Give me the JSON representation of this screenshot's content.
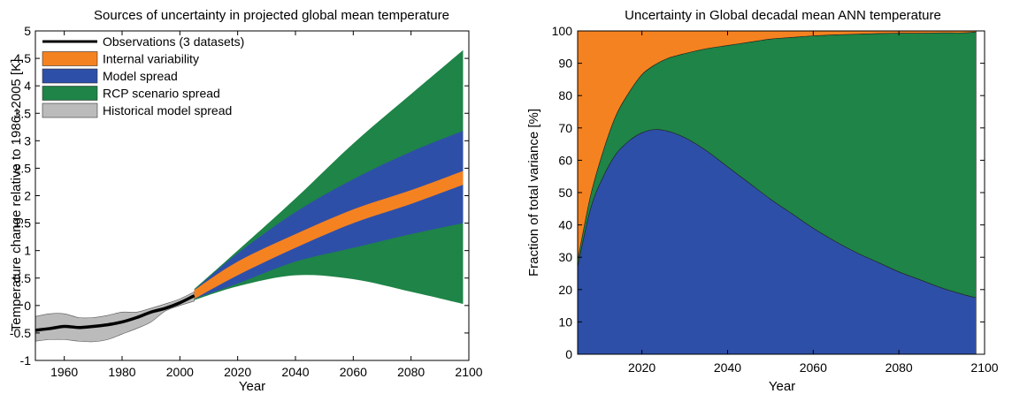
{
  "chart_data": [
    {
      "type": "area",
      "title": "Sources of uncertainty in projected global mean temperature",
      "xlabel": "Year",
      "ylabel": "Temperature change relative to 1986–2005 [K]",
      "xlim": [
        1950,
        2100
      ],
      "ylim": [
        -1,
        5
      ],
      "xticks": [
        1960,
        1980,
        2000,
        2020,
        2040,
        2060,
        2080,
        2100
      ],
      "yticks": [
        -1,
        -0.5,
        0,
        0.5,
        1,
        1.5,
        2,
        2.5,
        3,
        3.5,
        4,
        4.5,
        5
      ],
      "grid": false,
      "legend_position": "top-left",
      "legend": [
        {
          "label": "Observations (3 datasets)",
          "kind": "line",
          "color": "#000000"
        },
        {
          "label": "Internal variability",
          "kind": "patch",
          "color": "#F58220"
        },
        {
          "label": "Model spread",
          "kind": "patch",
          "color": "#2E4FA8"
        },
        {
          "label": "RCP scenario spread",
          "kind": "patch",
          "color": "#1E8447"
        },
        {
          "label": "Historical model spread",
          "kind": "patch",
          "color": "#BBBBBB"
        }
      ],
      "series": [
        {
          "name": "Historical model spread",
          "color": "#BBBBBB",
          "x": [
            1950,
            1955,
            1960,
            1965,
            1970,
            1975,
            1980,
            1985,
            1990,
            1995,
            2000,
            2005
          ],
          "upper": [
            -0.2,
            -0.15,
            -0.15,
            -0.22,
            -0.22,
            -0.18,
            -0.12,
            -0.12,
            -0.05,
            0.03,
            0.12,
            0.25
          ],
          "lower": [
            -0.65,
            -0.62,
            -0.62,
            -0.65,
            -0.66,
            -0.62,
            -0.52,
            -0.42,
            -0.3,
            -0.1,
            0.0,
            0.08
          ]
        },
        {
          "name": "Observations (3 datasets)",
          "color": "#000000",
          "x": [
            1950,
            1955,
            1960,
            1965,
            1970,
            1975,
            1980,
            1985,
            1990,
            1995,
            2000,
            2005
          ],
          "y": [
            -0.45,
            -0.42,
            -0.38,
            -0.4,
            -0.38,
            -0.35,
            -0.3,
            -0.22,
            -0.12,
            -0.05,
            0.05,
            0.18
          ]
        },
        {
          "name": "RCP scenario spread",
          "color": "#1E8447",
          "x": [
            2005,
            2020,
            2040,
            2060,
            2080,
            2098
          ],
          "upper": [
            0.3,
            1.0,
            1.95,
            2.95,
            3.85,
            4.65
          ],
          "lower": [
            0.1,
            0.35,
            0.55,
            0.48,
            0.25,
            0.03
          ]
        },
        {
          "name": "Model spread",
          "color": "#2E4FA8",
          "x": [
            2005,
            2020,
            2040,
            2060,
            2080,
            2098
          ],
          "upper": [
            0.28,
            0.95,
            1.7,
            2.3,
            2.8,
            3.18
          ],
          "lower": [
            0.12,
            0.4,
            0.8,
            1.05,
            1.3,
            1.5
          ]
        },
        {
          "name": "Internal variability",
          "color": "#F58220",
          "x": [
            2005,
            2020,
            2040,
            2060,
            2080,
            2098
          ],
          "upper": [
            0.28,
            0.8,
            1.3,
            1.75,
            2.1,
            2.45
          ],
          "lower": [
            0.12,
            0.55,
            1.05,
            1.5,
            1.85,
            2.2
          ]
        }
      ]
    },
    {
      "type": "area",
      "title": "Uncertainty in Global decadal mean ANN temperature",
      "xlabel": "Year",
      "ylabel": "Fraction of total variance  [%]",
      "xlim": [
        2005,
        2100
      ],
      "ylim": [
        0,
        100
      ],
      "xticks": [
        2020,
        2040,
        2060,
        2080,
        2100
      ],
      "yticks": [
        0,
        10,
        20,
        30,
        40,
        50,
        60,
        70,
        80,
        90,
        100
      ],
      "grid": false,
      "stacked": true,
      "x": [
        2005,
        2008,
        2011,
        2014,
        2017,
        2020,
        2023,
        2026,
        2030,
        2035,
        2040,
        2045,
        2050,
        2055,
        2060,
        2065,
        2070,
        2075,
        2080,
        2085,
        2090,
        2095,
        2098
      ],
      "series": [
        {
          "name": "Model spread",
          "color": "#2E4FA8",
          "values": [
            27,
            45,
            55,
            62,
            66,
            68.5,
            69.5,
            69,
            67,
            63,
            58,
            53,
            48,
            43.5,
            39,
            35,
            31.5,
            28.5,
            25.5,
            23,
            20.5,
            18.5,
            17.5
          ]
        },
        {
          "name": "RCP scenario spread",
          "color": "#1E8447",
          "values": [
            2,
            4,
            8,
            12,
            15,
            18,
            20,
            22.5,
            26,
            31.5,
            37.5,
            43.5,
            49.5,
            54.5,
            59.5,
            63.8,
            67.5,
            70.7,
            73.8,
            76.3,
            78.9,
            80.9,
            82.2
          ]
        },
        {
          "name": "Internal variability",
          "color": "#F58220",
          "values": [
            71,
            51,
            37,
            26,
            19,
            13.5,
            10.5,
            8.5,
            7,
            5.5,
            4.5,
            3.5,
            2.5,
            2,
            1.5,
            1.2,
            1,
            0.8,
            0.7,
            0.7,
            0.6,
            0.6,
            0.3
          ]
        }
      ]
    }
  ]
}
